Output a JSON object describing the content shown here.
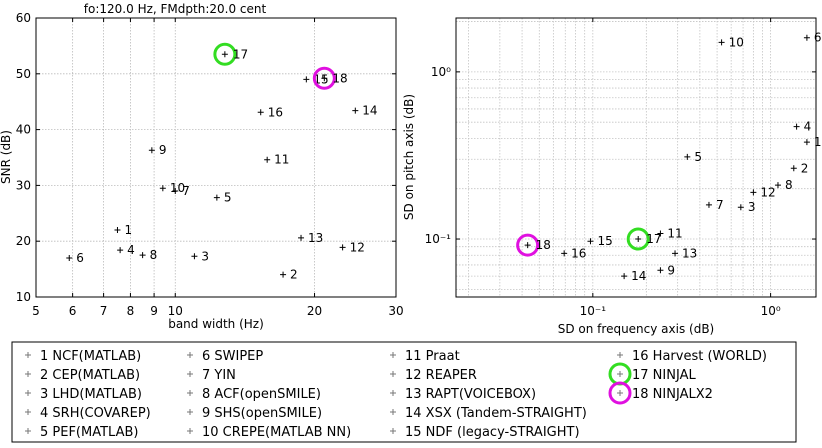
{
  "chart_data": [
    {
      "type": "scatter",
      "title": "fo:120.0 Hz, FMdpth:20.0 cent",
      "xlabel": "band width (Hz)",
      "ylabel": "SNR (dB)",
      "xscale": "log",
      "yscale": "linear",
      "xlim": [
        5,
        30
      ],
      "ylim": [
        10,
        60
      ],
      "xticks": [
        5,
        6,
        7,
        8,
        9,
        10,
        20,
        30
      ],
      "xtick_labels": [
        "5",
        "6",
        "7",
        "8",
        "9",
        "10",
        "20",
        "30"
      ],
      "yticks": [
        10,
        20,
        30,
        40,
        50,
        60
      ],
      "ytick_labels": [
        "10",
        "20",
        "30",
        "40",
        "50",
        "60"
      ],
      "grid": true,
      "points": [
        {
          "id": "1",
          "x": 7.5,
          "y": 22.0
        },
        {
          "id": "2",
          "x": 17.1,
          "y": 14.0
        },
        {
          "id": "3",
          "x": 11.0,
          "y": 17.3
        },
        {
          "id": "4",
          "x": 7.6,
          "y": 18.4
        },
        {
          "id": "5",
          "x": 12.3,
          "y": 27.8
        },
        {
          "id": "6",
          "x": 5.9,
          "y": 17.0
        },
        {
          "id": "7",
          "x": 10.0,
          "y": 29.0
        },
        {
          "id": "8",
          "x": 8.5,
          "y": 17.5
        },
        {
          "id": "9",
          "x": 8.9,
          "y": 36.3
        },
        {
          "id": "10",
          "x": 9.4,
          "y": 29.5
        },
        {
          "id": "11",
          "x": 15.8,
          "y": 34.6
        },
        {
          "id": "12",
          "x": 23.0,
          "y": 18.9
        },
        {
          "id": "13",
          "x": 18.7,
          "y": 20.6
        },
        {
          "id": "14",
          "x": 24.5,
          "y": 43.4
        },
        {
          "id": "15",
          "x": 19.2,
          "y": 49.0
        },
        {
          "id": "16",
          "x": 15.3,
          "y": 43.1
        },
        {
          "id": "17",
          "x": 12.8,
          "y": 53.5
        },
        {
          "id": "18",
          "x": 21.0,
          "y": 49.2
        }
      ]
    },
    {
      "type": "scatter",
      "title": "",
      "xlabel": "SD on frequency axis (dB)",
      "ylabel": "SD on pitch axis (dB)",
      "xscale": "log",
      "yscale": "log",
      "xlim": [
        0.017,
        1.8
      ],
      "ylim": [
        0.045,
        2.1
      ],
      "xticks": [
        0.1,
        1
      ],
      "xtick_labels": [
        "10⁻¹",
        "10⁰"
      ],
      "yticks": [
        0.1,
        1
      ],
      "ytick_labels": [
        "10⁻¹",
        "10⁰"
      ],
      "grid": true,
      "points": [
        {
          "id": "1",
          "x": 1.6,
          "y": 0.38
        },
        {
          "id": "2",
          "x": 1.35,
          "y": 0.265
        },
        {
          "id": "3",
          "x": 0.68,
          "y": 0.155
        },
        {
          "id": "4",
          "x": 1.4,
          "y": 0.47
        },
        {
          "id": "5",
          "x": 0.34,
          "y": 0.31
        },
        {
          "id": "6",
          "x": 1.6,
          "y": 1.6
        },
        {
          "id": "7",
          "x": 0.45,
          "y": 0.16
        },
        {
          "id": "8",
          "x": 1.1,
          "y": 0.21
        },
        {
          "id": "9",
          "x": 0.24,
          "y": 0.065
        },
        {
          "id": "10",
          "x": 0.53,
          "y": 1.5
        },
        {
          "id": "11",
          "x": 0.24,
          "y": 0.108
        },
        {
          "id": "12",
          "x": 0.8,
          "y": 0.19
        },
        {
          "id": "13",
          "x": 0.29,
          "y": 0.082
        },
        {
          "id": "14",
          "x": 0.15,
          "y": 0.06
        },
        {
          "id": "15",
          "x": 0.097,
          "y": 0.097
        },
        {
          "id": "16",
          "x": 0.069,
          "y": 0.082
        },
        {
          "id": "17",
          "x": 0.18,
          "y": 0.1
        },
        {
          "id": "18",
          "x": 0.043,
          "y": 0.092
        }
      ]
    }
  ],
  "highlights": {
    "17": "#33dd22",
    "18": "#e010e0"
  },
  "legend": {
    "marker": "+",
    "columns": [
      [
        "1 NCF(MATLAB)",
        "2 CEP(MATLAB)",
        "3 LHD(MATLAB)",
        "4 SRH(COVAREP)",
        "5 PEF(MATLAB)"
      ],
      [
        "6 SWIPEP",
        "7 YIN",
        "8 ACF(openSMILE)",
        "9 SHS(openSMILE)",
        "10 CREPE(MATLAB NN)"
      ],
      [
        "11 Praat",
        "12 REAPER",
        "13 RAPT(VOICEBOX)",
        "14 XSX (Tandem-STRAIGHT)",
        "15 NDF (legacy-STRAIGHT)"
      ],
      [
        "16 Harvest (WORLD)",
        "17 NINJAL",
        "18 NINJALX2"
      ]
    ]
  }
}
